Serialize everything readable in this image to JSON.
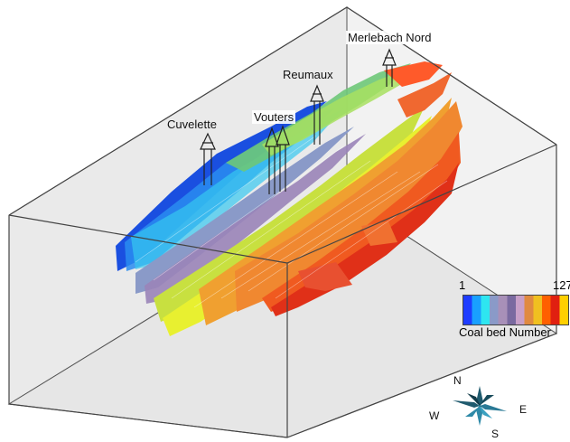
{
  "shafts": {
    "merlebach": "Merlebach Nord",
    "reumaux": "Reumaux",
    "vouters": "Vouters",
    "cuvelette": "Cuvelette"
  },
  "legend": {
    "min": "1",
    "max": "127",
    "title": "Coal bed Number",
    "colors": [
      "#1e3cff",
      "#19a0ff",
      "#2ee6f0",
      "#8a9ac8",
      "#a890b8",
      "#7a6aa0",
      "#c8a0c8",
      "#e08a40",
      "#f0c020",
      "#ff6000",
      "#e02010",
      "#ffd000"
    ]
  },
  "compass": {
    "n": "N",
    "e": "E",
    "s": "S",
    "w": "W"
  }
}
